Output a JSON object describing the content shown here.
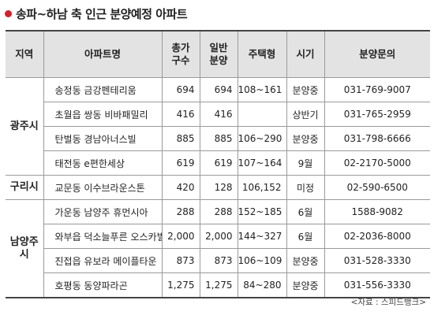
{
  "title": "송파~하남 축 인근 분양예정 아파트",
  "headers": {
    "region": "지역",
    "apartment": "아파트명",
    "total_l1": "총가",
    "total_l2": "구수",
    "general_l1": "일반",
    "general_l2": "분양",
    "type": "주택형",
    "timing": "시기",
    "inquiry": "분양문의"
  },
  "regions": {
    "gwangju": "광주시",
    "guri": "구리시",
    "namyangju_l1": "남양주",
    "namyangju_l2": "시"
  },
  "rows": [
    {
      "apt": "송정동 금강펜테리움",
      "total": "694",
      "general": "694",
      "type": "108~161",
      "timing": "분양중",
      "phone": "031-769-9007"
    },
    {
      "apt": "초월읍 쌍동 비바패밀리",
      "total": "416",
      "general": "416",
      "type": "",
      "timing": "상반기",
      "phone": "031-765-2959"
    },
    {
      "apt": "탄벌동 경남아너스빌",
      "total": "885",
      "general": "885",
      "type": "106~290",
      "timing": "분양중",
      "phone": "031-798-6666"
    },
    {
      "apt": "태전동 e편한세상",
      "total": "619",
      "general": "619",
      "type": "107~164",
      "timing": "9월",
      "phone": "02-2170-5000"
    },
    {
      "apt": "교문동 이수브라운스톤",
      "total": "420",
      "general": "128",
      "type": "106,152",
      "timing": "미정",
      "phone": "02-590-6500"
    },
    {
      "apt": "가운동 남양주 휴먼시아",
      "total": "288",
      "general": "288",
      "type": "152~185",
      "timing": "6월",
      "phone": "1588-9082"
    },
    {
      "apt": "와부읍 덕소늘푸른 오스카빌",
      "total": "2,000",
      "general": "2,000",
      "type": "144~327",
      "timing": "6월",
      "phone": "02-2036-8000"
    },
    {
      "apt": "진접읍 유보라 메이플타운",
      "total": "873",
      "general": "873",
      "type": "106~109",
      "timing": "분양중",
      "phone": "031-528-3330"
    },
    {
      "apt": "호평동 동양파라곤",
      "total": "1,275",
      "general": "1,275",
      "type": "84~280",
      "timing": "분양중",
      "phone": "031-556-3330"
    }
  ],
  "source": "<자료 : 스피드뱅크>"
}
